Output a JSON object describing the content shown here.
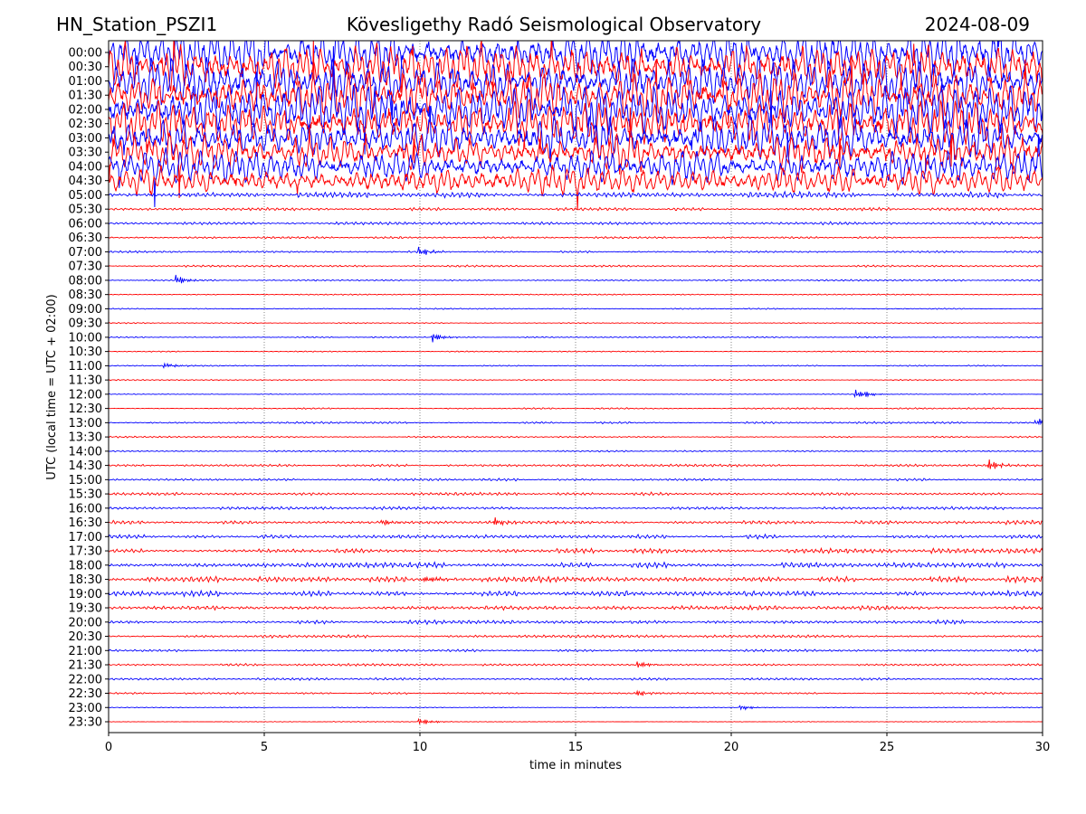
{
  "header": {
    "station": "HN_Station_PSZI1",
    "observatory": "Kövesligethy Radó Seismological Observatory",
    "date": "2024-08-09"
  },
  "chart_data": {
    "type": "line",
    "title": "Kövesligethy Radó Seismological Observatory",
    "xlabel": "time in minutes",
    "ylabel": "UTC (local time = UTC + 02:00)",
    "xlim": [
      0,
      30
    ],
    "xticks": [
      0,
      5,
      10,
      15,
      20,
      25,
      30
    ],
    "grid": "vertical dotted at each x tick",
    "colors": [
      "#0000ff",
      "#ff0000"
    ],
    "rows": [
      "00:00",
      "00:30",
      "01:00",
      "01:30",
      "02:00",
      "02:30",
      "03:00",
      "03:30",
      "04:00",
      "04:30",
      "05:00",
      "05:30",
      "06:00",
      "06:30",
      "07:00",
      "07:30",
      "08:00",
      "08:30",
      "09:00",
      "09:30",
      "10:00",
      "10:30",
      "11:00",
      "11:30",
      "12:00",
      "12:30",
      "13:00",
      "13:30",
      "14:00",
      "14:30",
      "15:00",
      "15:30",
      "16:00",
      "16:30",
      "17:00",
      "17:30",
      "18:00",
      "18:30",
      "19:00",
      "19:30",
      "20:00",
      "20:30",
      "21:00",
      "21:30",
      "22:00",
      "22:30",
      "23:00",
      "23:30"
    ],
    "activity_level": [
      1.0,
      1.0,
      1.0,
      1.0,
      1.0,
      1.0,
      0.9,
      0.8,
      0.7,
      0.6,
      0.3,
      0.15,
      0.15,
      0.1,
      0.1,
      0.1,
      0.08,
      0.06,
      0.06,
      0.06,
      0.06,
      0.06,
      0.06,
      0.06,
      0.04,
      0.08,
      0.1,
      0.08,
      0.08,
      0.12,
      0.12,
      0.15,
      0.15,
      0.2,
      0.2,
      0.25,
      0.28,
      0.3,
      0.28,
      0.25,
      0.2,
      0.15,
      0.12,
      0.12,
      0.12,
      0.1,
      0.04,
      0.04
    ],
    "events": [
      {
        "row": 14,
        "minute": 10.0,
        "amp": 0.4
      },
      {
        "row": 16,
        "minute": 2.2,
        "amp": 0.4
      },
      {
        "row": 20,
        "minute": 10.4,
        "amp": 0.4
      },
      {
        "row": 22,
        "minute": 1.8,
        "amp": 0.3
      },
      {
        "row": 24,
        "minute": 24.0,
        "amp": 0.6
      },
      {
        "row": 26,
        "minute": 29.8,
        "amp": 0.4
      },
      {
        "row": 29,
        "minute": 28.3,
        "amp": 0.5
      },
      {
        "row": 33,
        "minute": 12.4,
        "amp": 0.4
      },
      {
        "row": 33,
        "minute": 8.8,
        "amp": 0.3
      },
      {
        "row": 37,
        "minute": 10.1,
        "amp": 0.5
      },
      {
        "row": 43,
        "minute": 17.0,
        "amp": 0.3
      },
      {
        "row": 45,
        "minute": 17.0,
        "amp": 0.3
      },
      {
        "row": 46,
        "minute": 20.3,
        "amp": 0.3
      },
      {
        "row": 47,
        "minute": 10.0,
        "amp": 0.35
      }
    ]
  }
}
